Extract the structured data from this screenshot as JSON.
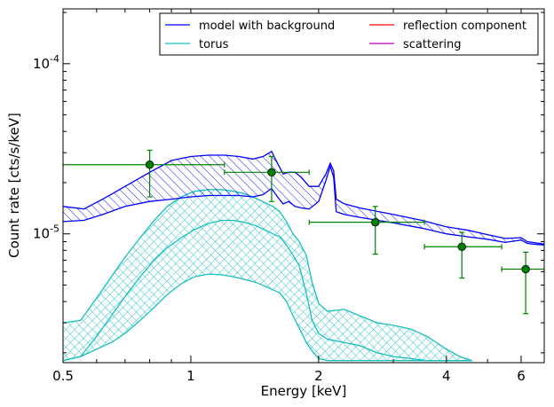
{
  "chart_data": {
    "type": "line",
    "xlabel": "Energy [keV]",
    "ylabel": "Count rate [cts/s/keV]",
    "x_scale": "log",
    "y_scale": "log",
    "xlim": [
      0.5,
      6.8
    ],
    "ylim": [
      1.75e-06,
      0.00021
    ],
    "x_ticks": [
      {
        "value": 0.5,
        "label": "0.5"
      },
      {
        "value": 1,
        "label": "1"
      },
      {
        "value": 2,
        "label": "2"
      },
      {
        "value": 4,
        "label": "4"
      },
      {
        "value": 6,
        "label": "6"
      }
    ],
    "y_ticks": [
      {
        "value": 1e-05,
        "base": "10",
        "exp": "-5"
      },
      {
        "value": 0.0001,
        "base": "10",
        "exp": "-4"
      }
    ],
    "grid": false,
    "legend": {
      "position": "top-right",
      "columns": 2,
      "entries": [
        {
          "label": "model with background",
          "color": "#0000ff"
        },
        {
          "label": "torus",
          "color": "#17bfbf"
        },
        {
          "label": "reflection component",
          "color": "#ff0000"
        },
        {
          "label": "scattering",
          "color": "#bf00bf"
        }
      ]
    },
    "series": [
      {
        "name": "model with background",
        "kind": "band",
        "color": "#0000ff",
        "hatch": "diagonal",
        "x": [
          0.5,
          0.56,
          0.62,
          0.7,
          0.8,
          0.9,
          1.0,
          1.1,
          1.2,
          1.3,
          1.4,
          1.48,
          1.55,
          1.6,
          1.65,
          1.7,
          1.76,
          1.82,
          1.9,
          2.0,
          2.08,
          2.13,
          2.17,
          2.2,
          2.3,
          2.5,
          3.0,
          3.5,
          4.0,
          4.5,
          5.0,
          5.5,
          6.0,
          6.2,
          6.4,
          6.8
        ],
        "upper": [
          1.45e-05,
          1.4e-05,
          1.6e-05,
          1.9e-05,
          2.3e-05,
          2.7e-05,
          2.85e-05,
          2.9e-05,
          2.9e-05,
          2.85e-05,
          2.75e-05,
          2.85e-05,
          3.05e-05,
          2.6e-05,
          2.25e-05,
          2.3e-05,
          2.3e-05,
          2.15e-05,
          1.9e-05,
          1.9e-05,
          2.25e-05,
          2.6e-05,
          2.35e-05,
          1.6e-05,
          1.5e-05,
          1.42e-05,
          1.3e-05,
          1.2e-05,
          1.1e-05,
          1.05e-05,
          9.9e-06,
          9.4e-06,
          9.5e-06,
          9e-06,
          8.9e-06,
          8.7e-06
        ],
        "lower": [
          1.18e-05,
          1.2e-05,
          1.3e-05,
          1.45e-05,
          1.55e-05,
          1.6e-05,
          1.65e-05,
          1.68e-05,
          1.68e-05,
          1.68e-05,
          1.65e-05,
          1.7e-05,
          1.85e-05,
          1.65e-05,
          1.5e-05,
          1.55e-05,
          1.45e-05,
          1.42e-05,
          1.4e-05,
          1.55e-05,
          2.05e-05,
          2.5e-05,
          2.15e-05,
          1.35e-05,
          1.3e-05,
          1.25e-05,
          1.16e-05,
          1.08e-05,
          1e-05,
          9.6e-06,
          9.3e-06,
          8.9e-06,
          9.2e-06,
          8.8e-06,
          8.7e-06,
          8.6e-06
        ]
      },
      {
        "name": "torus",
        "kind": "band",
        "color": "#17bfbf",
        "hatch": "cross",
        "x": [
          0.5,
          0.55,
          0.6,
          0.65,
          0.7,
          0.76,
          0.82,
          0.88,
          0.95,
          1.02,
          1.1,
          1.18,
          1.26,
          1.34,
          1.42,
          1.5,
          1.56,
          1.62,
          1.68,
          1.74,
          1.8,
          1.87,
          1.93,
          2.0,
          2.1,
          2.3,
          2.5,
          2.75,
          3.0,
          3.3,
          3.6,
          4.0,
          4.3,
          4.6
        ],
        "upper": [
          3e-06,
          3.1e-06,
          4.2e-06,
          5.6e-06,
          7.3e-06,
          9.5e-06,
          1.2e-05,
          1.45e-05,
          1.65e-05,
          1.78e-05,
          1.82e-05,
          1.82e-05,
          1.78e-05,
          1.72e-05,
          1.62e-05,
          1.52e-05,
          1.45e-05,
          1.35e-05,
          1.18e-05,
          1e-05,
          9e-06,
          7.5e-06,
          5.2e-06,
          3.9e-06,
          3.5e-06,
          3.6e-06,
          3.3e-06,
          3e-06,
          2.9e-06,
          2.75e-06,
          2.5e-06,
          2.1e-06,
          1.9e-06,
          1.8e-06
        ],
        "lower": [
          1.8e-06,
          1.9e-06,
          2.1e-06,
          2.3e-06,
          2.6e-06,
          3.1e-06,
          3.7e-06,
          4.4e-06,
          5.1e-06,
          5.6e-06,
          5.8e-06,
          5.75e-06,
          5.6e-06,
          5.4e-06,
          5.2e-06,
          4.9e-06,
          4.7e-06,
          4.5e-06,
          4e-06,
          3.3e-06,
          2.8e-06,
          2.3e-06,
          2.05e-06,
          1.85e-06,
          1.8e-06,
          1.8e-06,
          1.8e-06,
          1.8e-06,
          1.8e-06,
          1.8e-06,
          1.8e-06,
          1.8e-06,
          1.8e-06,
          1.8e-06
        ],
        "inner": [
          1.8e-06,
          1.9e-06,
          2.5e-06,
          3.3e-06,
          4.3e-06,
          5.6e-06,
          7e-06,
          8.3e-06,
          9.5e-06,
          1.06e-05,
          1.15e-05,
          1.2e-05,
          1.2e-05,
          1.17e-05,
          1.12e-05,
          1.05e-05,
          1e-05,
          9.6e-06,
          8.6e-06,
          7.5e-06,
          6.5e-06,
          4.5e-06,
          3.1e-06,
          2.6e-06,
          2.4e-06,
          2.3e-06,
          2.2e-06,
          2e-06,
          1.9e-06,
          1.85e-06,
          1.8e-06,
          1.8e-06,
          1.8e-06,
          1.8e-06
        ]
      }
    ],
    "data_points": {
      "color": "#008000",
      "points": [
        {
          "x": 0.8,
          "y": 2.55e-05,
          "xerr": [
            0.5,
            1.2
          ],
          "yerr": [
            1.65e-05,
            3.1e-05
          ]
        },
        {
          "x": 1.55,
          "y": 2.3e-05,
          "xerr": [
            1.2,
            1.9
          ],
          "yerr": [
            1.55e-05,
            2.85e-05
          ]
        },
        {
          "x": 2.72,
          "y": 1.17e-05,
          "xerr": [
            1.9,
            3.55
          ],
          "yerr": [
            7.6e-06,
            1.45e-05
          ]
        },
        {
          "x": 4.35,
          "y": 8.4e-06,
          "xerr": [
            3.55,
            5.4
          ],
          "yerr": [
            5.5e-06,
            1.02e-05
          ]
        },
        {
          "x": 6.15,
          "y": 6.2e-06,
          "xerr": [
            5.4,
            6.8
          ],
          "yerr": [
            3.4e-06,
            7.8e-06
          ]
        }
      ]
    }
  }
}
